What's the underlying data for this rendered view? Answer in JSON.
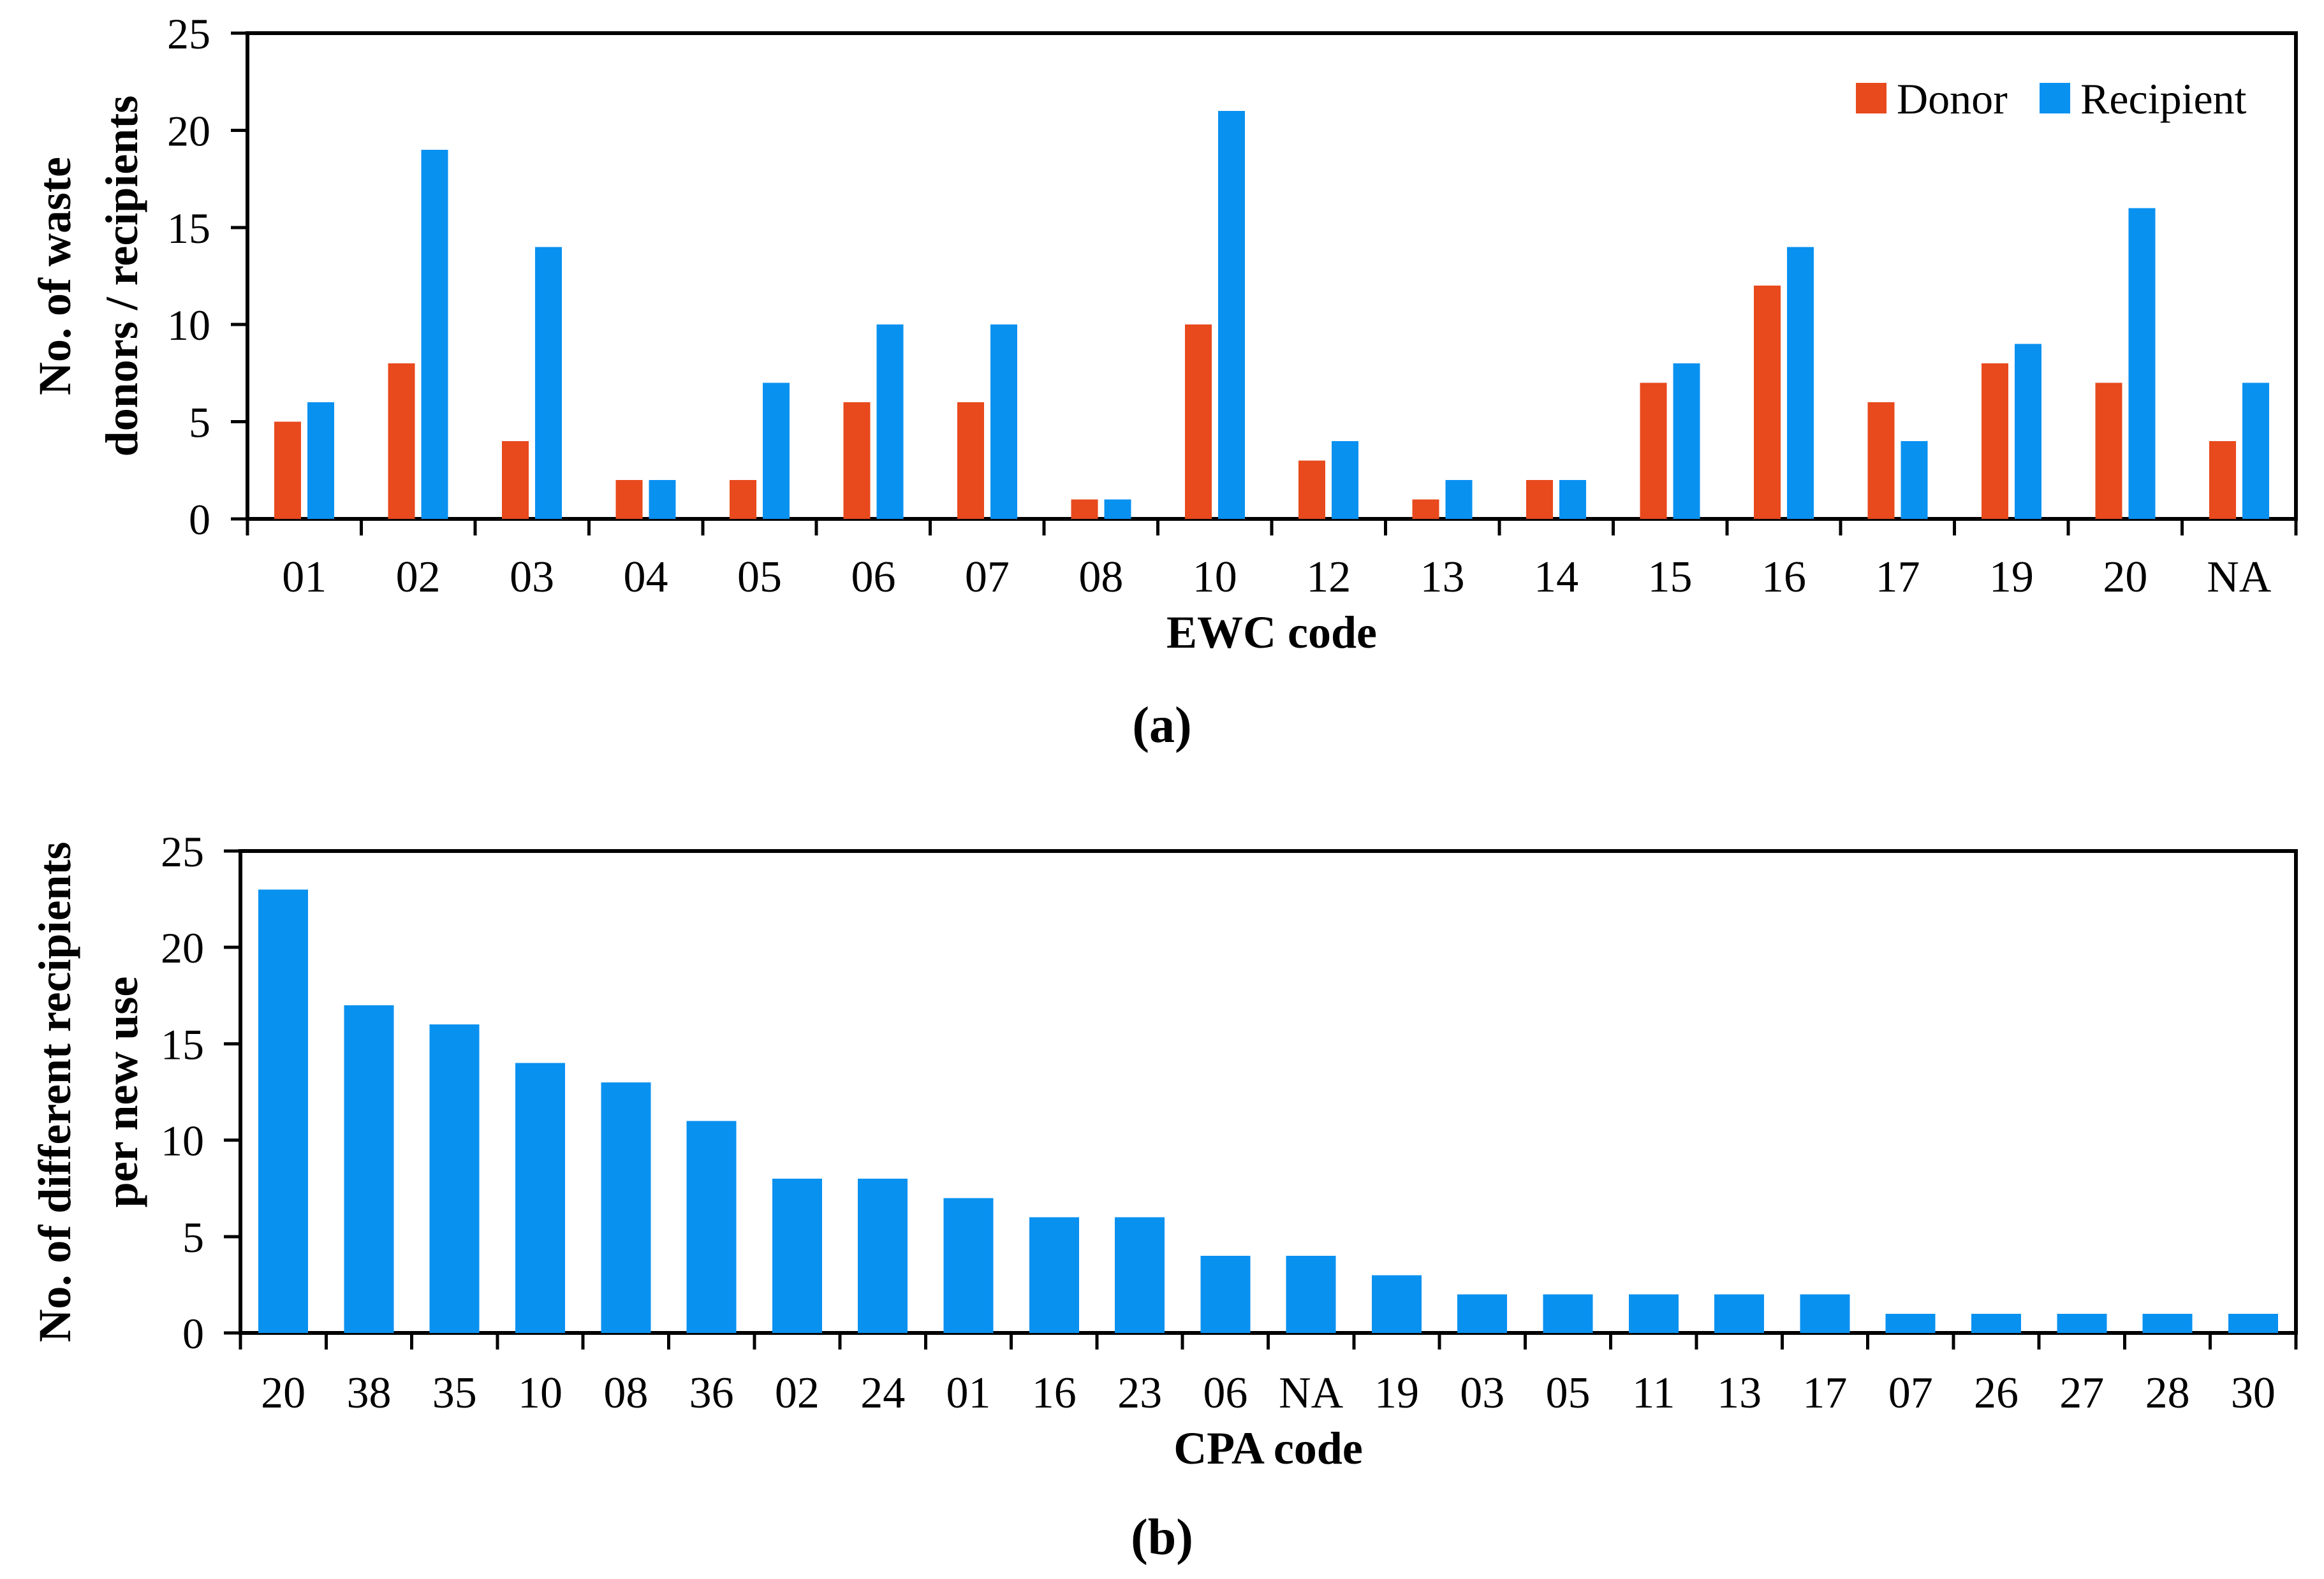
{
  "figure": {
    "caption_a": "(a)",
    "caption_b": "(b)"
  },
  "colors": {
    "donor": "#E8491D",
    "recipient": "#0991F0",
    "axis": "#000000",
    "text": "#000000",
    "background": "#FFFFFF"
  },
  "chart_data": [
    {
      "id": "a",
      "type": "bar",
      "title": "",
      "xlabel": "EWC code",
      "ylabel_lines": [
        "No. of waste",
        "donors / recipients"
      ],
      "ylim": [
        0,
        25
      ],
      "yticks": [
        0,
        5,
        10,
        15,
        20,
        25
      ],
      "grid": false,
      "legend_position": "top-right-inside",
      "categories": [
        "01",
        "02",
        "03",
        "04",
        "05",
        "06",
        "07",
        "08",
        "10",
        "12",
        "13",
        "14",
        "15",
        "16",
        "17",
        "19",
        "20",
        "NA"
      ],
      "series": [
        {
          "name": "Donor",
          "color": "donor",
          "values": [
            5,
            8,
            4,
            2,
            2,
            6,
            6,
            1,
            10,
            3,
            1,
            2,
            7,
            12,
            6,
            8,
            7,
            4
          ]
        },
        {
          "name": "Recipient",
          "color": "recipient",
          "values": [
            6,
            19,
            14,
            2,
            7,
            10,
            10,
            1,
            21,
            4,
            2,
            2,
            8,
            14,
            4,
            9,
            16,
            7
          ]
        }
      ]
    },
    {
      "id": "b",
      "type": "bar",
      "title": "",
      "xlabel": "CPA code",
      "ylabel_lines": [
        "No. of different recipients",
        "per new use"
      ],
      "ylim": [
        0,
        25
      ],
      "yticks": [
        0,
        5,
        10,
        15,
        20,
        25
      ],
      "grid": false,
      "categories": [
        "20",
        "38",
        "35",
        "10",
        "08",
        "36",
        "02",
        "24",
        "01",
        "16",
        "23",
        "06",
        "NA",
        "19",
        "03",
        "05",
        "11",
        "13",
        "17",
        "07",
        "26",
        "27",
        "28",
        "30"
      ],
      "series": [
        {
          "color": "recipient",
          "values": [
            23,
            17,
            16,
            14,
            13,
            11,
            8,
            8,
            7,
            6,
            6,
            4,
            4,
            3,
            2,
            2,
            2,
            2,
            2,
            1,
            1,
            1,
            1,
            1
          ]
        }
      ]
    }
  ]
}
